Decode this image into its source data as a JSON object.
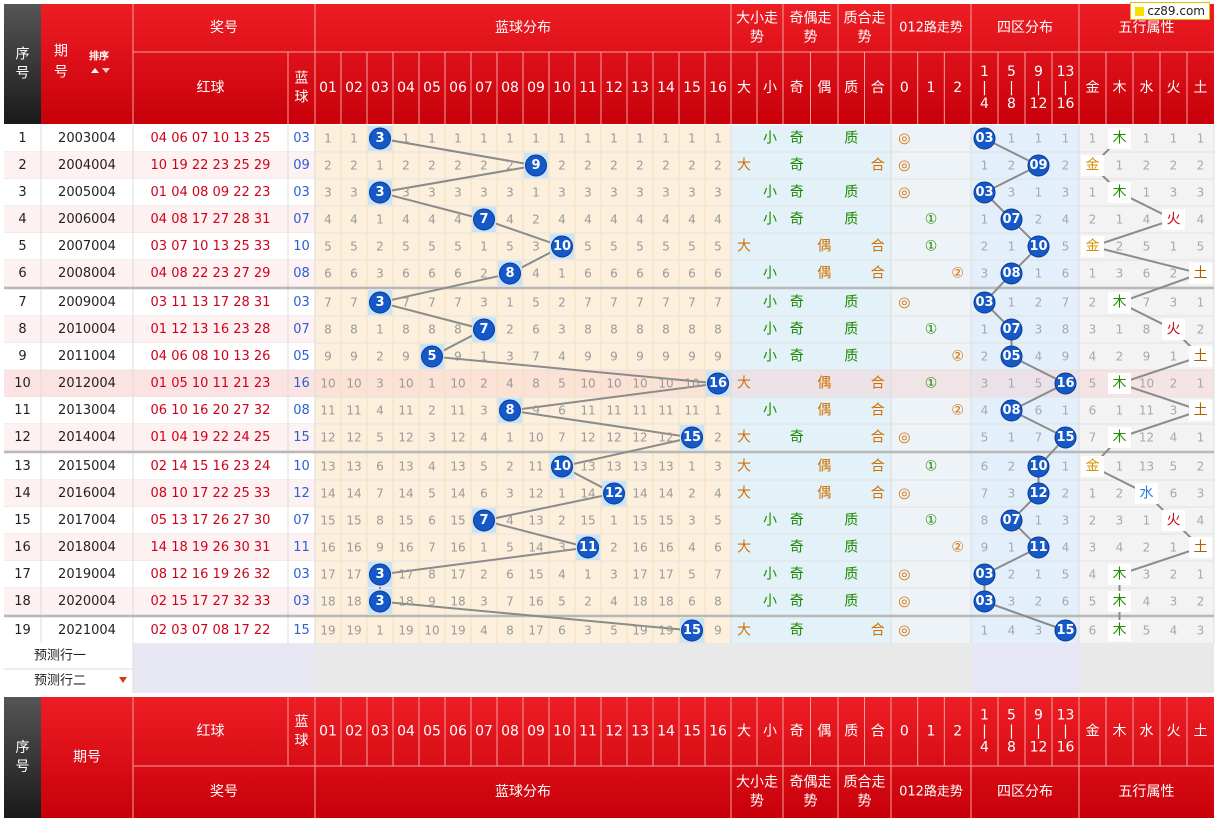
{
  "logo_text": "cz89.com",
  "header": {
    "serial": "序号",
    "period": "期号",
    "period_split": "期\n号",
    "sort_label": "排序",
    "award": "奖号",
    "red": "红球",
    "blue": "蓝球",
    "blue_dist": "蓝球分布",
    "size": "大小走势",
    "odd": "奇偶走势",
    "prime": "质合走势",
    "road": "012路走势",
    "zone": "四区分布",
    "element": "五行属性",
    "blue_cols": [
      "01",
      "02",
      "03",
      "04",
      "05",
      "06",
      "07",
      "08",
      "09",
      "10",
      "11",
      "12",
      "13",
      "14",
      "15",
      "16"
    ],
    "size_cols": [
      "大",
      "小"
    ],
    "odd_cols": [
      "奇",
      "偶"
    ],
    "prime_cols": [
      "质",
      "合"
    ],
    "road_cols": [
      "0",
      "1",
      "2"
    ],
    "zone_cols": [
      "1\n|\n4",
      "5\n|\n8",
      "9\n|\n12",
      "13\n|\n16"
    ],
    "element_cols": [
      "金",
      "木",
      "水",
      "火",
      "土"
    ]
  },
  "rows": [
    {
      "no": "1",
      "period": "2003004",
      "red": "04 06 07 10 13 25",
      "blue": "03"
    },
    {
      "no": "2",
      "period": "2004004",
      "red": "10 19 22 23 25 29",
      "blue": "09"
    },
    {
      "no": "3",
      "period": "2005004",
      "red": "01 04 08 09 22 23",
      "blue": "03"
    },
    {
      "no": "4",
      "period": "2006004",
      "red": "04 08 17 27 28 31",
      "blue": "07"
    },
    {
      "no": "5",
      "period": "2007004",
      "red": "03 07 10 13 25 33",
      "blue": "10"
    },
    {
      "no": "6",
      "period": "2008004",
      "red": "04 08 22 23 27 29",
      "blue": "08"
    },
    {
      "no": "7",
      "period": "2009004",
      "red": "03 11 13 17 28 31",
      "blue": "03"
    },
    {
      "no": "8",
      "period": "2010004",
      "red": "01 12 13 16 23 28",
      "blue": "07"
    },
    {
      "no": "9",
      "period": "2011004",
      "red": "04 06 08 10 13 26",
      "blue": "05"
    },
    {
      "no": "10",
      "period": "2012004",
      "red": "01 05 10 11 21 23",
      "blue": "16"
    },
    {
      "no": "11",
      "period": "2013004",
      "red": "06 10 16 20 27 32",
      "blue": "08"
    },
    {
      "no": "12",
      "period": "2014004",
      "red": "01 04 19 22 24 25",
      "blue": "15"
    },
    {
      "no": "13",
      "period": "2015004",
      "red": "02 14 15 16 23 24",
      "blue": "10"
    },
    {
      "no": "14",
      "period": "2016004",
      "red": "08 10 17 22 25 33",
      "blue": "12"
    },
    {
      "no": "15",
      "period": "2017004",
      "red": "05 13 17 26 27 30",
      "blue": "07"
    },
    {
      "no": "16",
      "period": "2018004",
      "red": "14 18 19 26 30 31",
      "blue": "11"
    },
    {
      "no": "17",
      "period": "2019004",
      "red": "08 12 16 19 26 32",
      "blue": "03"
    },
    {
      "no": "18",
      "period": "2020004",
      "red": "02 15 17 27 32 33",
      "blue": "03"
    },
    {
      "no": "19",
      "period": "2021004",
      "red": "02 03 07 08 17 22",
      "blue": "15"
    }
  ],
  "blue_miss": [
    [
      1,
      1,
      "3",
      1,
      1,
      1,
      1,
      1,
      1,
      1,
      1,
      1,
      1,
      1,
      1,
      1
    ],
    [
      2,
      2,
      1,
      2,
      2,
      2,
      2,
      2,
      "9",
      2,
      2,
      2,
      2,
      2,
      2,
      2
    ],
    [
      3,
      3,
      "3",
      3,
      3,
      3,
      3,
      3,
      1,
      3,
      3,
      3,
      3,
      3,
      3,
      3
    ],
    [
      4,
      4,
      1,
      4,
      4,
      4,
      "7",
      4,
      2,
      4,
      4,
      4,
      4,
      4,
      4,
      4
    ],
    [
      5,
      5,
      2,
      5,
      5,
      5,
      1,
      5,
      3,
      "10",
      5,
      5,
      5,
      5,
      5,
      5
    ],
    [
      6,
      6,
      3,
      6,
      6,
      6,
      2,
      "8",
      4,
      1,
      6,
      6,
      6,
      6,
      6,
      6
    ],
    [
      7,
      7,
      "3",
      7,
      7,
      7,
      3,
      1,
      5,
      2,
      7,
      7,
      7,
      7,
      7,
      7
    ],
    [
      8,
      8,
      1,
      8,
      8,
      8,
      "7",
      2,
      6,
      3,
      8,
      8,
      8,
      8,
      8,
      8
    ],
    [
      9,
      9,
      2,
      9,
      "5",
      9,
      1,
      3,
      7,
      4,
      9,
      9,
      9,
      9,
      9,
      9
    ],
    [
      10,
      10,
      3,
      10,
      1,
      10,
      2,
      4,
      8,
      5,
      10,
      10,
      10,
      10,
      10,
      "16"
    ],
    [
      11,
      11,
      4,
      11,
      2,
      11,
      3,
      "8",
      9,
      6,
      11,
      11,
      11,
      11,
      11,
      1
    ],
    [
      12,
      12,
      5,
      12,
      3,
      12,
      4,
      1,
      10,
      7,
      12,
      12,
      12,
      12,
      "15",
      2
    ],
    [
      13,
      13,
      6,
      13,
      4,
      13,
      5,
      2,
      11,
      "10",
      13,
      13,
      13,
      13,
      1,
      3
    ],
    [
      14,
      14,
      7,
      14,
      5,
      14,
      6,
      3,
      12,
      1,
      14,
      "12",
      14,
      14,
      2,
      4
    ],
    [
      15,
      15,
      8,
      15,
      6,
      15,
      "7",
      4,
      13,
      2,
      15,
      1,
      15,
      15,
      3,
      5
    ],
    [
      16,
      16,
      9,
      16,
      7,
      16,
      1,
      5,
      14,
      3,
      "11",
      2,
      16,
      16,
      4,
      6
    ],
    [
      17,
      17,
      "3",
      17,
      8,
      17,
      2,
      6,
      15,
      4,
      1,
      3,
      17,
      17,
      5,
      7
    ],
    [
      18,
      18,
      "3",
      18,
      9,
      18,
      3,
      7,
      16,
      5,
      2,
      4,
      18,
      18,
      6,
      8
    ],
    [
      19,
      19,
      1,
      19,
      10,
      19,
      4,
      8,
      17,
      6,
      3,
      5,
      19,
      19,
      "15",
      9
    ]
  ],
  "size_marks": [
    "小",
    "大",
    "小",
    "小",
    "大",
    "小",
    "小",
    "小",
    "小",
    "大",
    "小",
    "大",
    "大",
    "大",
    "小",
    "大",
    "小",
    "小",
    "大"
  ],
  "odd_marks": [
    "奇",
    "奇",
    "奇",
    "奇",
    "偶",
    "偶",
    "奇",
    "奇",
    "奇",
    "偶",
    "偶",
    "奇",
    "偶",
    "偶",
    "奇",
    "奇",
    "奇",
    "奇",
    "奇"
  ],
  "prime_marks": [
    "质",
    "合",
    "质",
    "质",
    "合",
    "合",
    "质",
    "质",
    "质",
    "合",
    "合",
    "合",
    "合",
    "合",
    "质",
    "质",
    "质",
    "质",
    "合"
  ],
  "road_marks": [
    "◎",
    "◎",
    "◎",
    "①",
    "①",
    "②",
    "◎",
    "①",
    "②",
    "①",
    "②",
    "◎",
    "①",
    "◎",
    "①",
    "②",
    "◎",
    "◎",
    "◎"
  ],
  "zone_miss": [
    [
      "03",
      1,
      1,
      1
    ],
    [
      1,
      2,
      "09",
      2
    ],
    [
      "03",
      3,
      1,
      3
    ],
    [
      1,
      "07",
      2,
      4
    ],
    [
      2,
      1,
      "10",
      5
    ],
    [
      3,
      "08",
      1,
      6
    ],
    [
      "03",
      1,
      2,
      7
    ],
    [
      1,
      "07",
      3,
      8
    ],
    [
      2,
      "05",
      4,
      9
    ],
    [
      3,
      1,
      5,
      "16"
    ],
    [
      4,
      "08",
      6,
      1
    ],
    [
      5,
      1,
      7,
      "15"
    ],
    [
      6,
      2,
      "10",
      1
    ],
    [
      7,
      3,
      "12",
      2
    ],
    [
      8,
      "07",
      1,
      3
    ],
    [
      9,
      1,
      "11",
      4
    ],
    [
      "03",
      2,
      1,
      5
    ],
    [
      "03",
      3,
      2,
      6
    ],
    [
      1,
      4,
      3,
      "15"
    ]
  ],
  "element_miss": [
    [
      1,
      "木",
      1,
      1,
      1
    ],
    [
      "金",
      1,
      2,
      2,
      2
    ],
    [
      1,
      "木",
      1,
      3,
      3
    ],
    [
      2,
      1,
      4,
      "火",
      4
    ],
    [
      "金",
      2,
      5,
      1,
      5
    ],
    [
      1,
      3,
      6,
      2,
      "土"
    ],
    [
      2,
      "木",
      7,
      3,
      1
    ],
    [
      3,
      1,
      8,
      "火",
      2
    ],
    [
      4,
      2,
      9,
      1,
      "土"
    ],
    [
      5,
      "木",
      10,
      2,
      1
    ],
    [
      6,
      1,
      11,
      3,
      "土"
    ],
    [
      7,
      "木",
      12,
      4,
      1
    ],
    [
      "金",
      1,
      13,
      5,
      2
    ],
    [
      1,
      2,
      "水",
      6,
      3
    ],
    [
      2,
      3,
      1,
      "火",
      4
    ],
    [
      3,
      4,
      2,
      1,
      "土"
    ],
    [
      4,
      "木",
      3,
      2,
      1
    ],
    [
      5,
      "木",
      4,
      3,
      2
    ],
    [
      6,
      "木",
      5,
      4,
      3
    ]
  ],
  "predict_rows": [
    "预测行一",
    "预测行二"
  ],
  "colors": {
    "header_red": "#c8000a",
    "header_dark": "#222222",
    "ball_blue": "#1558c8",
    "mark_red": "#cc2a00",
    "mark_green": "#1f8a00",
    "mark_orange": "#d07000"
  }
}
